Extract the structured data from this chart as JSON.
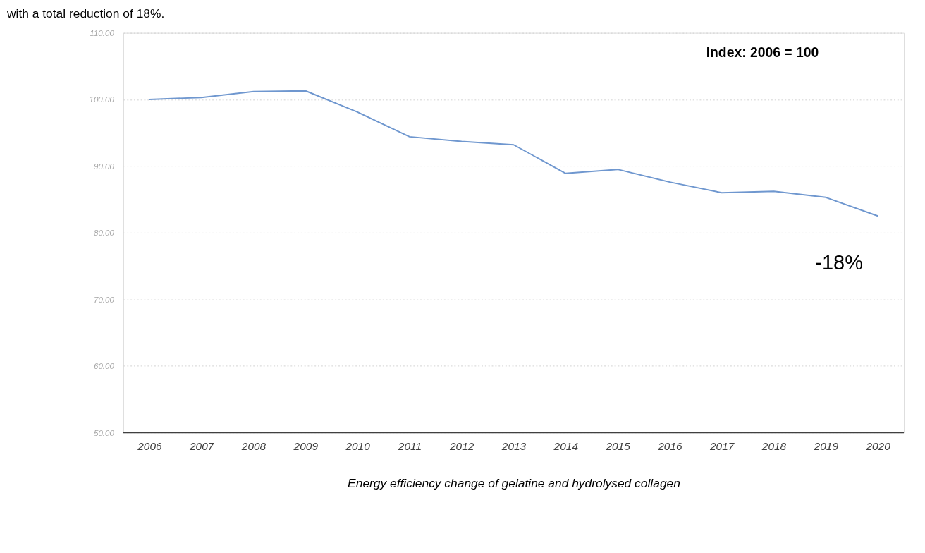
{
  "chart_data": {
    "type": "line",
    "title": "with a total reduction of 18%.",
    "xlabel": "Energy efficiency change of gelatine and hydrolysed collagen",
    "categories": [
      "2006",
      "2007",
      "2008",
      "2009",
      "2010",
      "2011",
      "2012",
      "2013",
      "2014",
      "2015",
      "2016",
      "2017",
      "2018",
      "2019",
      "2020"
    ],
    "series": [
      {
        "color": "#6f97cf",
        "values": [
          100.0,
          100.3,
          101.2,
          101.3,
          98.1,
          94.4,
          93.7,
          93.2,
          88.9,
          89.5,
          87.6,
          86.0,
          86.2,
          85.3,
          82.5
        ]
      }
    ],
    "ylim": [
      50,
      110
    ],
    "yticks": [
      {
        "value": 50,
        "label": "50.00"
      },
      {
        "value": 60,
        "label": "60.00"
      },
      {
        "value": 70,
        "label": "70.00"
      },
      {
        "value": 80,
        "label": "80.00"
      },
      {
        "value": 90,
        "label": "90.00"
      },
      {
        "value": 100,
        "label": "100.00"
      },
      {
        "value": 110,
        "label": "110.00"
      }
    ],
    "grid": "y",
    "legend": false,
    "marker": "none",
    "line_style": "solid",
    "annotations": [
      "Index: 2006 = 100",
      "-18%"
    ]
  }
}
